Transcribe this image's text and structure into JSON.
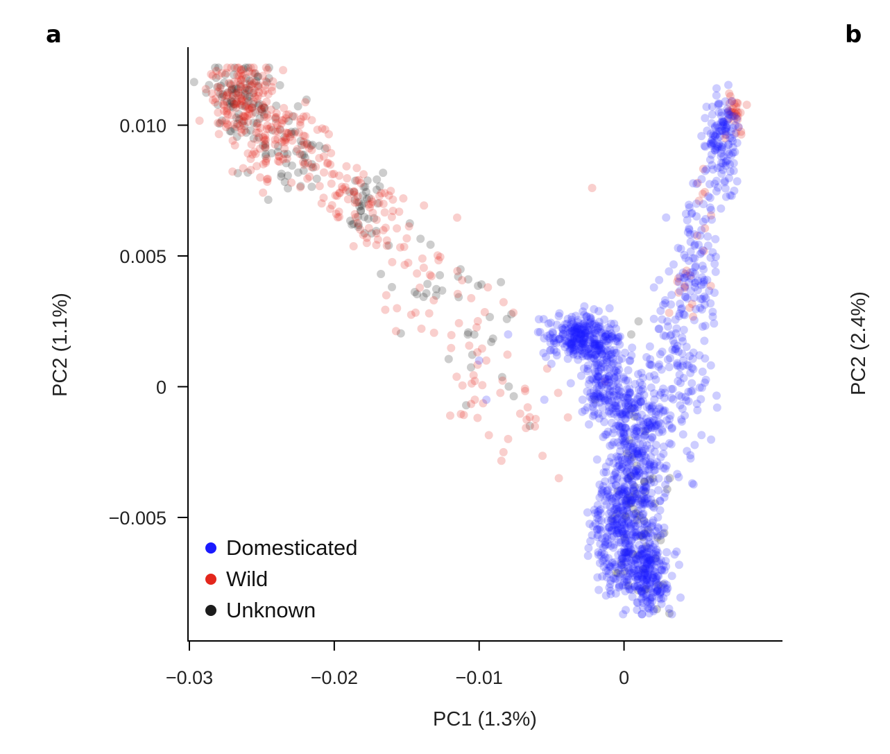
{
  "chart_data": {
    "type": "scatter",
    "panel_labels": [
      "a",
      "b"
    ],
    "xlabel": "PC1 (1.3%)",
    "ylabel": "PC2 (1.1%)",
    "right_panel_ylabel": "PC2 (2.4%)",
    "xlim": [
      -0.03,
      0.0095
    ],
    "ylim": [
      -0.0089,
      0.0124
    ],
    "x_ticks": [
      -0.03,
      -0.02,
      -0.01,
      0
    ],
    "x_tick_labels": [
      "−0.03",
      "−0.02",
      "−0.01",
      "0"
    ],
    "y_ticks": [
      -0.005,
      0,
      0.005,
      0.01
    ],
    "y_tick_labels": [
      "−0.005",
      "0",
      "0.005",
      "0.010"
    ],
    "legend_position": "bottom-left",
    "grid": false,
    "point_opacity": 0.22,
    "series": [
      {
        "name": "Domesticated",
        "color": "#1a1aff",
        "clusters": [
          {
            "center": [
              -0.0029,
              0.0019
            ],
            "spread": [
              0.0012,
              0.0004
            ],
            "count": 260
          },
          {
            "center": [
              -0.0015,
              0.0004
            ],
            "spread": [
              0.0008,
              0.0009
            ],
            "count": 160
          },
          {
            "center": [
              0.0005,
              -0.0035
            ],
            "spread": [
              0.0012,
              0.002
            ],
            "count": 420
          },
          {
            "center": [
              0.0015,
              -0.0072
            ],
            "spread": [
              0.0008,
              0.0007
            ],
            "count": 220
          },
          {
            "center": [
              -0.0005,
              -0.0055
            ],
            "spread": [
              0.001,
              0.0012
            ],
            "count": 160
          },
          {
            "center": [
              0.001,
              -0.001
            ],
            "spread": [
              0.001,
              0.0012
            ],
            "count": 120
          },
          {
            "center": [
              0.004,
              0.001
            ],
            "spread": [
              0.001,
              0.002
            ],
            "count": 140
          },
          {
            "center": [
              0.005,
              0.0045
            ],
            "spread": [
              0.0008,
              0.0012
            ],
            "count": 80
          },
          {
            "center": [
              0.0065,
              0.009
            ],
            "spread": [
              0.0006,
              0.001
            ],
            "count": 90
          },
          {
            "center": [
              0.007,
              0.01
            ],
            "spread": [
              0.0004,
              0.0006
            ],
            "count": 50
          }
        ],
        "points": [
          [
            -0.008,
            0.002
          ],
          [
            -0.01,
            0.001
          ],
          [
            -0.0095,
            -0.0005
          ],
          [
            -0.0055,
            -0.0005
          ],
          [
            0.004,
            0.003
          ],
          [
            0.003,
            0.0025
          ],
          [
            -0.001,
            0.003
          ],
          [
            0.0045,
            0.006
          ],
          [
            0.005,
            0.007
          ]
        ]
      },
      {
        "name": "Wild",
        "color": "#e3261c",
        "clusters": [
          {
            "center": [
              -0.0265,
              0.011
            ],
            "spread": [
              0.0012,
              0.0007
            ],
            "count": 140
          },
          {
            "center": [
              -0.0235,
              0.0093
            ],
            "spread": [
              0.0014,
              0.0008
            ],
            "count": 110
          },
          {
            "center": [
              -0.019,
              0.0075
            ],
            "spread": [
              0.001,
              0.0008
            ],
            "count": 40
          },
          {
            "center": [
              -0.017,
              0.0063
            ],
            "spread": [
              0.0012,
              0.0008
            ],
            "count": 35
          },
          {
            "center": [
              -0.014,
              0.004
            ],
            "spread": [
              0.0015,
              0.0015
            ],
            "count": 30
          },
          {
            "center": [
              -0.01,
              0.001
            ],
            "spread": [
              0.0015,
              0.0015
            ],
            "count": 30
          },
          {
            "center": [
              -0.007,
              -0.001
            ],
            "spread": [
              0.0012,
              0.001
            ],
            "count": 16
          },
          {
            "center": [
              0.0077,
              0.0105
            ],
            "spread": [
              0.0004,
              0.0005
            ],
            "count": 30
          },
          {
            "center": [
              0.004,
              0.004
            ],
            "spread": [
              0.0005,
              0.0006
            ],
            "count": 12
          },
          {
            "center": [
              0.005,
              0.0065
            ],
            "spread": [
              0.0008,
              0.001
            ],
            "count": 10
          }
        ],
        "points": [
          [
            -0.0094,
            0.0038
          ],
          [
            -0.0022,
            0.0076
          ],
          [
            -0.0045,
            -0.0035
          ],
          [
            -0.008,
            -0.002
          ],
          [
            -0.0103,
            -0.0005
          ],
          [
            -0.0013,
            0.0002
          ]
        ]
      },
      {
        "name": "Unknown",
        "color": "#1c1c1c",
        "clusters": [
          {
            "center": [
              -0.0265,
              0.011
            ],
            "spread": [
              0.0012,
              0.0007
            ],
            "count": 90
          },
          {
            "center": [
              -0.023,
              0.009
            ],
            "spread": [
              0.0014,
              0.0008
            ],
            "count": 50
          },
          {
            "center": [
              -0.0175,
              0.0067
            ],
            "spread": [
              0.0008,
              0.0006
            ],
            "count": 35
          },
          {
            "center": [
              -0.013,
              0.004
            ],
            "spread": [
              0.0015,
              0.0012
            ],
            "count": 22
          },
          {
            "center": [
              -0.009,
              0.001
            ],
            "spread": [
              0.0012,
              0.0012
            ],
            "count": 14
          },
          {
            "center": [
              0.001,
              -0.005
            ],
            "spread": [
              0.001,
              0.0018
            ],
            "count": 60
          }
        ],
        "points": [
          [
            -0.0085,
            0.004
          ],
          [
            -0.0065,
            -0.0015
          ],
          [
            -0.002,
            -0.0005
          ],
          [
            0.001,
            0.0025
          ],
          [
            0.0005,
            0.002
          ]
        ]
      }
    ]
  }
}
